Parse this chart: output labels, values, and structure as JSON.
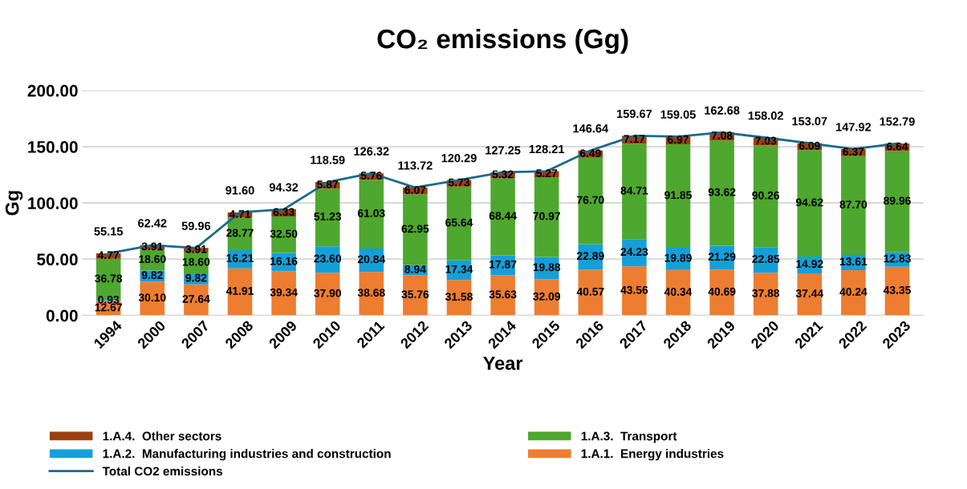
{
  "chart_data": {
    "type": "bar",
    "stacked": true,
    "title": "CO₂ emissions (Gg)",
    "xlabel": "Year",
    "ylabel": "Gg",
    "categories": [
      "1994",
      "2000",
      "2007",
      "2008",
      "2009",
      "2010",
      "2011",
      "2012",
      "2013",
      "2014",
      "2015",
      "2016",
      "2017",
      "2018",
      "2019",
      "2020",
      "2021",
      "2022",
      "2023"
    ],
    "series": [
      {
        "name": "1.A.1.  Energy industries",
        "color": "#ed7d31",
        "values": [
          12.67,
          30.1,
          27.64,
          41.91,
          39.34,
          37.9,
          38.68,
          35.76,
          31.58,
          35.63,
          32.09,
          40.57,
          43.56,
          40.34,
          40.69,
          37.88,
          37.44,
          40.24,
          43.35
        ],
        "value_labels": [
          "12.67",
          "30.10",
          "27.64",
          "41.91",
          "39.34",
          "37.90",
          "38.68",
          "35.76",
          "31.58",
          "35.63",
          "32.09",
          "40.57",
          "43.56",
          "40.34",
          "40.69",
          "37.88",
          "37.44",
          "40.24",
          "43.35"
        ]
      },
      {
        "name": "1.A.2.  Manufacturing industries and construction",
        "color": "#159fd9",
        "values": [
          0.93,
          9.82,
          9.82,
          16.21,
          16.16,
          23.6,
          20.84,
          8.94,
          17.34,
          17.87,
          19.88,
          22.89,
          24.23,
          19.89,
          21.29,
          22.85,
          14.92,
          13.61,
          12.83
        ],
        "value_labels": [
          "0.93",
          "9.82",
          "9.82",
          "16.21",
          "16.16",
          "23.60",
          "20.84",
          "8.94",
          "17.34",
          "17.87",
          "19.88",
          "22.89",
          "24.23",
          "19.89",
          "21.29",
          "22.85",
          "14.92",
          "13.61",
          "12.83"
        ]
      },
      {
        "name": "1.A.3.  Transport",
        "color": "#4ea72e",
        "values": [
          36.78,
          18.6,
          18.6,
          28.77,
          32.5,
          51.23,
          61.03,
          62.95,
          65.64,
          68.44,
          70.97,
          76.7,
          84.71,
          91.85,
          93.62,
          90.26,
          94.62,
          87.7,
          89.96
        ],
        "value_labels": [
          "36.78",
          "18.60",
          "18.60",
          "28.77",
          "32.50",
          "51.23",
          "61.03",
          "62.95",
          "65.64",
          "68.44",
          "70.97",
          "76.70",
          "84.71",
          "91.85",
          "93.62",
          "90.26",
          "94.62",
          "87.70",
          "89.96"
        ]
      },
      {
        "name": "1.A.4.  Other sectors",
        "color": "#9c3f0f",
        "values": [
          4.77,
          3.91,
          3.91,
          4.71,
          6.33,
          5.87,
          5.76,
          6.07,
          5.73,
          5.32,
          5.27,
          6.49,
          7.17,
          6.97,
          7.08,
          7.03,
          6.09,
          6.37,
          6.64
        ],
        "value_labels": [
          "4.77",
          "3.91",
          "3.91",
          "4.71",
          "6.33",
          "5.87",
          "5.76",
          "6.07",
          "5.73",
          "5.32",
          "5.27",
          "6.49",
          "7.17",
          "6.97",
          "7.08",
          "7.03",
          "6.09",
          "6.37",
          "6.64"
        ]
      },
      {
        "name": "Total CO2 emissions",
        "type": "line",
        "color": "#1a6a8c",
        "values": [
          55.15,
          62.42,
          59.96,
          91.6,
          94.32,
          118.59,
          126.32,
          113.72,
          120.29,
          127.25,
          128.21,
          146.64,
          159.67,
          159.05,
          162.68,
          158.02,
          153.07,
          147.92,
          152.79
        ],
        "value_labels": [
          "55.15",
          "62.42",
          "59.96",
          "91.60",
          "94.32",
          "118.59",
          "126.32",
          "113.72",
          "120.29",
          "127.25",
          "128.21",
          "146.64",
          "159.67",
          "159.05",
          "162.68",
          "158.02",
          "153.07",
          "147.92",
          "152.79"
        ]
      }
    ],
    "ylim": [
      0,
      200
    ],
    "yticks": [
      {
        "value": 0,
        "label": "0.00"
      },
      {
        "value": 50,
        "label": "50.00"
      },
      {
        "value": 100,
        "label": "100.00"
      },
      {
        "value": 150,
        "label": "150.00"
      },
      {
        "value": 200,
        "label": "200.00"
      }
    ],
    "grid": "y",
    "legend": "bottom",
    "marker": "none",
    "line_style": "solid"
  }
}
